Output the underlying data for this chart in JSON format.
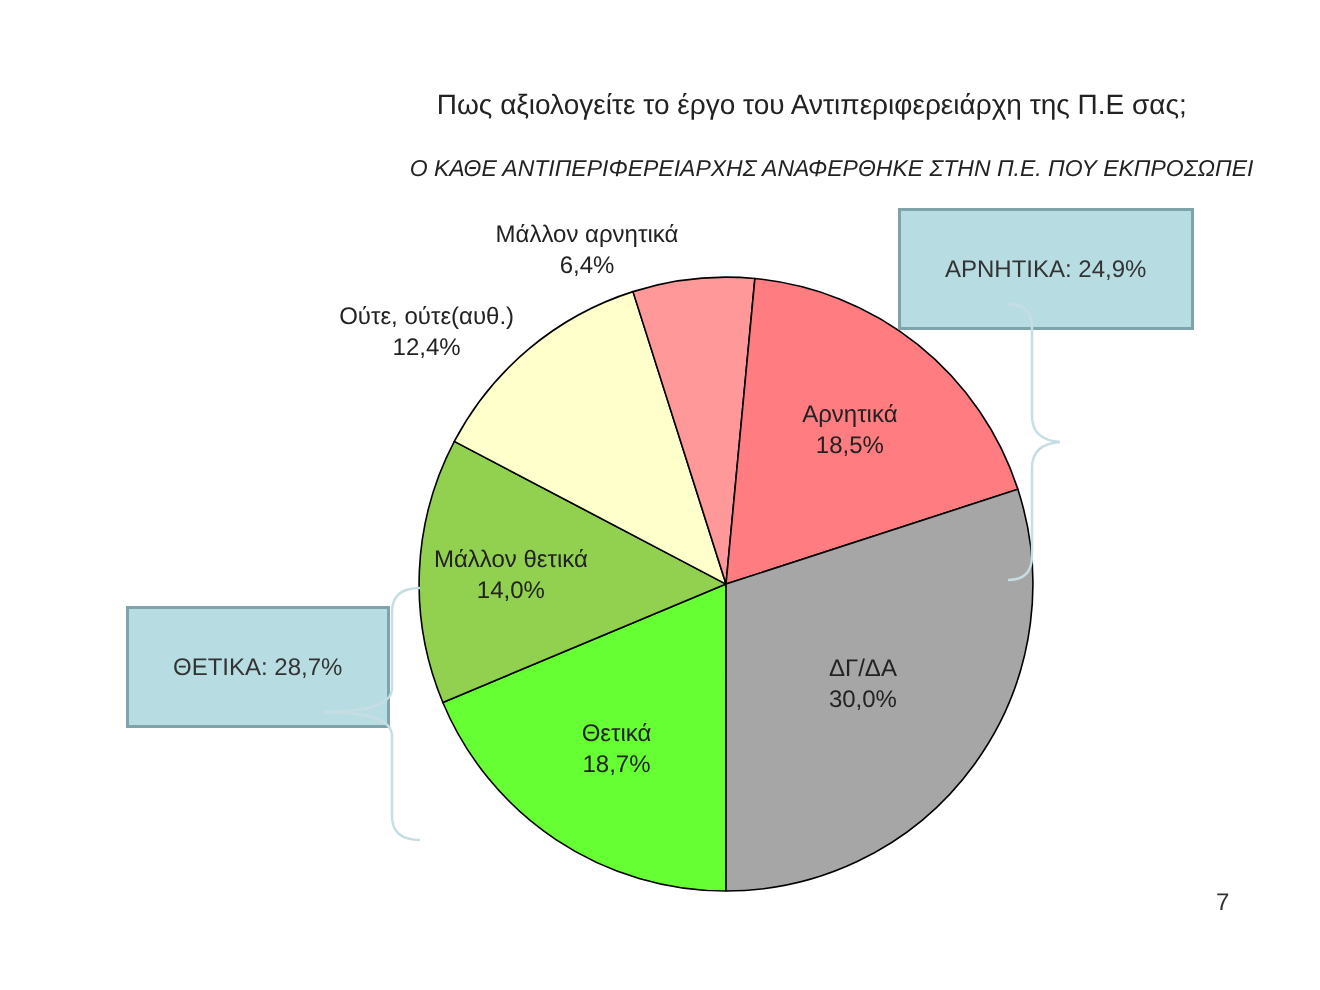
{
  "chart_data": {
    "type": "pie",
    "title": "Πως αξιολογείτε το έργο του Αντιπεριφερειάρχη της Π.Ε σας;",
    "subtitle": "Ο ΚΑΘΕ ΑΝΤΙΠΕΡΙΦΕΡΕΙΑΡΧΗΣ ΑΝΑΦΕΡΘΗΚΕ ΣΤΗΝ Π.Ε. ΠΟΥ ΕΚΠΡΟΣΩΠΕΙ",
    "categories": [
      "Θετικά",
      "Μάλλον θετικά",
      "Ούτε, ούτε(αυθ.)",
      "Μάλλον αρνητικά",
      "Αρνητικά",
      "ΔΓ/ΔΑ"
    ],
    "values": [
      18.7,
      14.0,
      12.4,
      6.4,
      18.5,
      30.0
    ],
    "value_labels": [
      "18,7%",
      "14,0%",
      "12,4%",
      "6,4%",
      "18,5%",
      "30,0%"
    ],
    "colors": [
      "#66ff33",
      "#92d050",
      "#ffffcc",
      "#ff9999",
      "#ff7c80",
      "#a6a6a6"
    ],
    "annotations": [
      "ΑΡΝΗΤΙΚΑ: 24,9%",
      "ΘΕΤΙΚΑ: 28,7%",
      "7"
    ],
    "legend": false
  }
}
